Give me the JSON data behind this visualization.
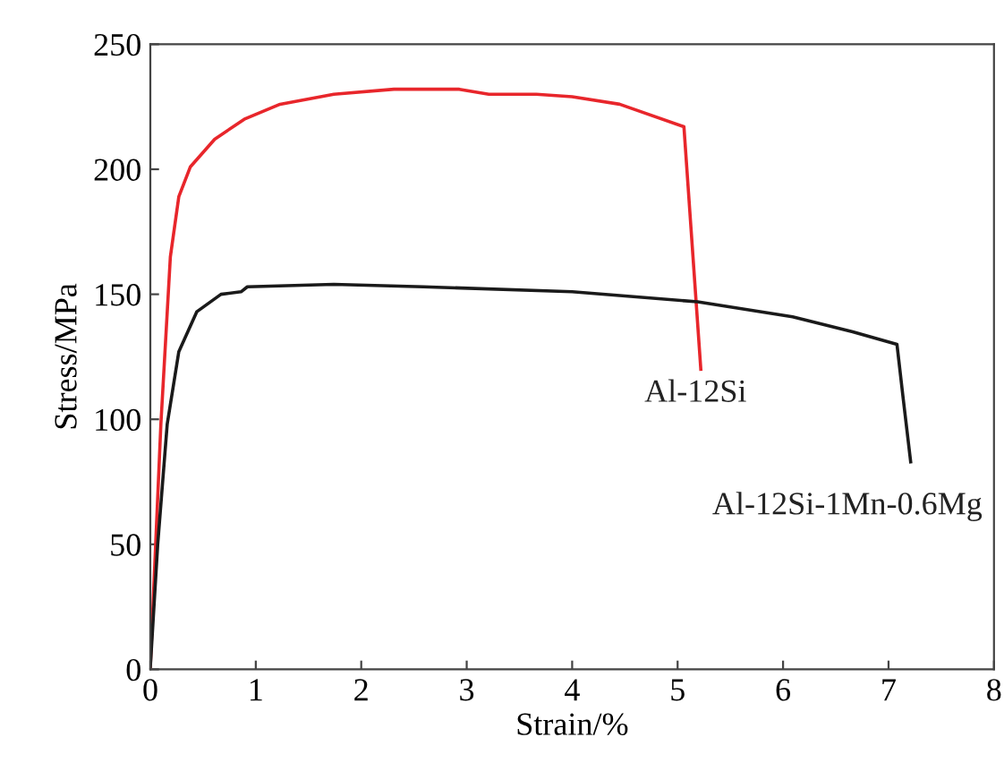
{
  "chart_data": {
    "type": "line",
    "xlabel": "Strain/%",
    "ylabel": "Stress/MPa",
    "xlim": [
      0,
      8
    ],
    "ylim": [
      0,
      250
    ],
    "xticks": [
      0,
      1,
      2,
      3,
      4,
      5,
      6,
      7,
      8
    ],
    "yticks": [
      0,
      50,
      100,
      150,
      200,
      250
    ],
    "grid": false,
    "legend": false,
    "marker": "none",
    "line_style": "solid",
    "series": [
      {
        "name": "Al-12Si",
        "color": "#e8262b",
        "x": [
          0,
          0.1,
          0.19,
          0.27,
          0.38,
          0.61,
          0.89,
          1.23,
          1.74,
          2.31,
          2.93,
          3.21,
          3.66,
          4.0,
          4.45,
          5.06,
          5.22
        ],
        "values": [
          1,
          98,
          165,
          189,
          201,
          212,
          220,
          226,
          230,
          232,
          232,
          230,
          230,
          229,
          226,
          217,
          120
        ]
      },
      {
        "name": "Al-12Si-1Mn-0.6Mg",
        "color": "#1a1a1a",
        "x": [
          0,
          0.07,
          0.16,
          0.27,
          0.44,
          0.67,
          0.86,
          0.92,
          1.74,
          2.59,
          4.0,
          5.19,
          6.09,
          6.66,
          7.08,
          7.14,
          7.21
        ],
        "values": [
          1,
          50,
          98,
          127,
          143,
          150,
          151,
          153,
          154,
          153,
          151,
          147,
          141,
          135,
          130,
          108,
          83
        ]
      }
    ]
  }
}
